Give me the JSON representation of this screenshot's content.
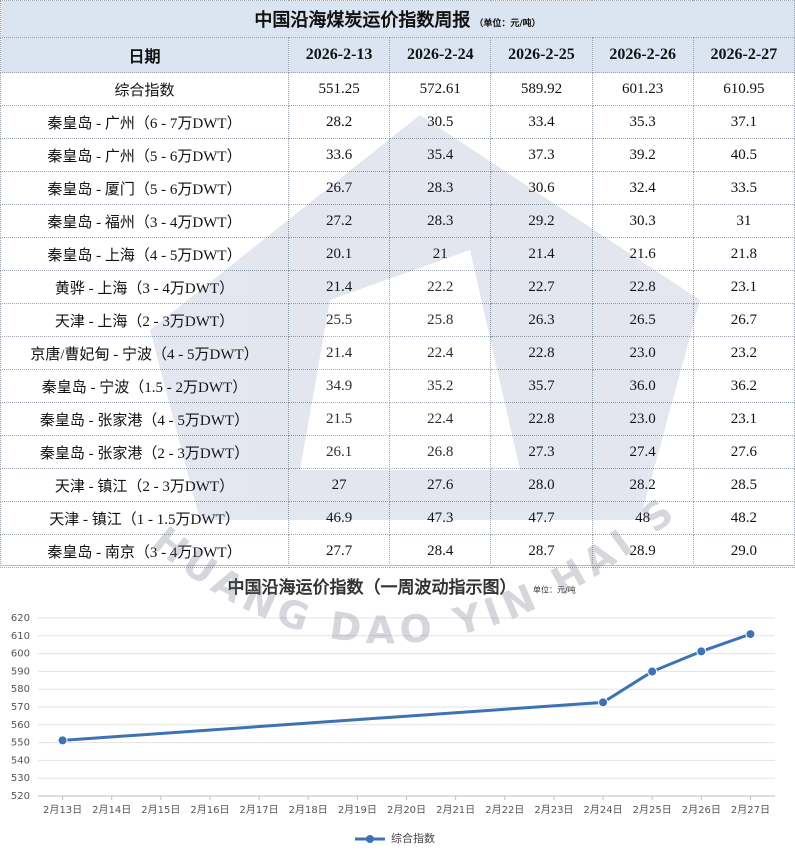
{
  "table": {
    "title": "中国沿海煤炭运价指数周报",
    "unit": "（单位：元/吨）",
    "header": [
      "日期",
      "2026-2-13",
      "2026-2-24",
      "2026-2-25",
      "2026-2-26",
      "2026-2-27"
    ],
    "rows": [
      [
        "综合指数",
        "551.25",
        "572.61",
        "589.92",
        "601.23",
        "610.95"
      ],
      [
        "秦皇岛 - 广州（6 - 7万DWT）",
        "28.2",
        "30.5",
        "33.4",
        "35.3",
        "37.1"
      ],
      [
        "秦皇岛 - 广州（5 - 6万DWT）",
        "33.6",
        "35.4",
        "37.3",
        "39.2",
        "40.5"
      ],
      [
        "秦皇岛 - 厦门（5 - 6万DWT）",
        "26.7",
        "28.3",
        "30.6",
        "32.4",
        "33.5"
      ],
      [
        "秦皇岛 - 福州（3 - 4万DWT）",
        "27.2",
        "28.3",
        "29.2",
        "30.3",
        "31"
      ],
      [
        "秦皇岛 - 上海（4 - 5万DWT）",
        "20.1",
        "21",
        "21.4",
        "21.6",
        "21.8"
      ],
      [
        "黄骅 - 上海（3 - 4万DWT）",
        "21.4",
        "22.2",
        "22.7",
        "22.8",
        "23.1"
      ],
      [
        "天津 - 上海（2 - 3万DWT）",
        "25.5",
        "25.8",
        "26.3",
        "26.5",
        "26.7"
      ],
      [
        "京唐/曹妃甸 - 宁波（4 - 5万DWT）",
        "21.4",
        "22.4",
        "22.8",
        "23.0",
        "23.2"
      ],
      [
        "秦皇岛 - 宁波（1.5 - 2万DWT）",
        "34.9",
        "35.2",
        "35.7",
        "36.0",
        "36.2"
      ],
      [
        "秦皇岛 - 张家港（4 - 5万DWT）",
        "21.5",
        "22.4",
        "22.8",
        "23.0",
        "23.1"
      ],
      [
        "秦皇岛 - 张家港（2 - 3万DWT）",
        "26.1",
        "26.8",
        "27.3",
        "27.4",
        "27.6"
      ],
      [
        "天津 - 镇江（2 - 3万DWT）",
        "27",
        "27.6",
        "28.0",
        "28.2",
        "28.5"
      ],
      [
        "天津 - 镇江（1 - 1.5万DWT）",
        "46.9",
        "47.3",
        "47.7",
        "48",
        "48.2"
      ],
      [
        "秦皇岛 - 南京（3 - 4万DWT）",
        "27.7",
        "28.4",
        "28.7",
        "28.9",
        "29.0"
      ]
    ]
  },
  "watermark": "HUANG DAO YIN HAI SHIPPING",
  "chart_data": {
    "type": "line",
    "title": "中国沿海运价指数（一周波动指示图）",
    "unit": "单位：元/吨",
    "x": [
      13,
      24,
      25,
      26,
      27
    ],
    "xlim": [
      12.5,
      27.5
    ],
    "xticks": [
      {
        "value": 13,
        "label": "2月13日"
      },
      {
        "value": 14,
        "label": "2月14日"
      },
      {
        "value": 15,
        "label": "2月15日"
      },
      {
        "value": 16,
        "label": "2月16日"
      },
      {
        "value": 17,
        "label": "2月17日"
      },
      {
        "value": 18,
        "label": "2月18日"
      },
      {
        "value": 19,
        "label": "2月19日"
      },
      {
        "value": 20,
        "label": "2月20日"
      },
      {
        "value": 21,
        "label": "2月21日"
      },
      {
        "value": 22,
        "label": "2月22日"
      },
      {
        "value": 23,
        "label": "2月23日"
      },
      {
        "value": 24,
        "label": "2月24日"
      },
      {
        "value": 25,
        "label": "2月25日"
      },
      {
        "value": 26,
        "label": "2月26日"
      },
      {
        "value": 27,
        "label": "2月27日"
      }
    ],
    "ylim": [
      520,
      620
    ],
    "yticks": [
      520,
      530,
      540,
      550,
      560,
      570,
      580,
      590,
      600,
      610,
      620
    ],
    "grid": true,
    "legend": "bottom",
    "series": [
      {
        "name": "综合指数",
        "color": "#3d72b4",
        "values": [
          551.25,
          572.61,
          589.92,
          601.23,
          610.95
        ]
      }
    ]
  }
}
